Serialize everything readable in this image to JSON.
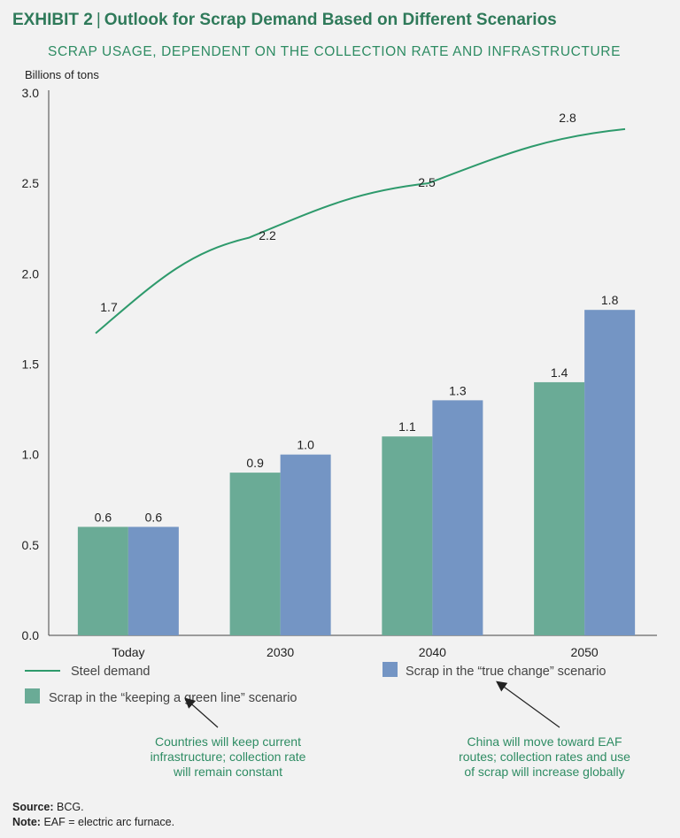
{
  "header": {
    "exhibit": "EXHIBIT 2",
    "separator": "|",
    "title": "Outlook for Scrap Demand Based on Different Scenarios",
    "subtitle": "SCRAP USAGE, DEPENDENT ON THE COLLECTION RATE AND INFRASTRUCTURE"
  },
  "colors": {
    "green_bar": "#6aab96",
    "blue_bar": "#7495c4",
    "steel_line": "#2e9a6c",
    "title_green": "#2f7a5a"
  },
  "chart_data": {
    "type": "bar",
    "ylabel": "Billions of tons",
    "ylim": [
      0,
      3.0
    ],
    "yticks": [
      "0.0",
      "0.5",
      "1.0",
      "1.5",
      "2.0",
      "2.5",
      "3.0"
    ],
    "categories": [
      "Today",
      "2030",
      "2040",
      "2050"
    ],
    "series": [
      {
        "name": "Scrap in the “keeping a green line” scenario",
        "type": "bar",
        "values": [
          0.6,
          0.9,
          1.1,
          1.4
        ],
        "labels": [
          "0.6",
          "0.9",
          "1.1",
          "1.4"
        ]
      },
      {
        "name": "Scrap in the “true change” scenario",
        "type": "bar",
        "values": [
          0.6,
          1.0,
          1.3,
          1.8
        ],
        "labels": [
          "0.6",
          "1.0",
          "1.3",
          "1.8"
        ]
      },
      {
        "name": "Steel demand",
        "type": "line",
        "values": [
          1.7,
          2.2,
          2.5,
          2.8
        ],
        "labels": [
          "1.7",
          "2.2",
          "2.5",
          "2.8"
        ]
      }
    ],
    "grid": false
  },
  "legend": {
    "steel": "Steel demand",
    "true_change": "Scrap in the “true change” scenario",
    "green_line": "Scrap in the “keeping a green line” scenario"
  },
  "annotations": {
    "left": [
      "Countries will keep current",
      "infrastructure; collection rate",
      "will remain constant"
    ],
    "right": [
      "China will move toward EAF",
      "routes; collection rates and use",
      "of scrap will increase globally"
    ]
  },
  "footer": {
    "source_label": "Source:",
    "source_text": "BCG.",
    "note_label": "Note:",
    "note_text": "EAF = electric arc furnace."
  }
}
